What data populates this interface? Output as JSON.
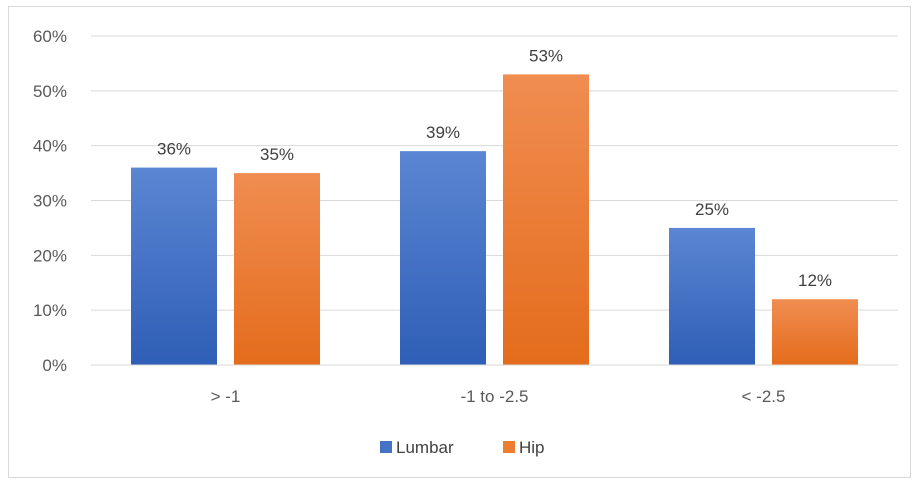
{
  "chart_data": {
    "type": "bar",
    "categories": [
      "> -1",
      "-1 to -2.5",
      "< -2.5"
    ],
    "series": [
      {
        "name": "Lumbar",
        "values": [
          36,
          39,
          25
        ],
        "labels": [
          "36%",
          "39%",
          "25%"
        ],
        "color": "#4472c4"
      },
      {
        "name": "Hip",
        "values": [
          35,
          53,
          12
        ],
        "labels": [
          "35%",
          "53%",
          "12%"
        ],
        "color": "#ed7d31"
      }
    ],
    "ylim": [
      0,
      60
    ],
    "yticks": [
      "0%",
      "10%",
      "20%",
      "30%",
      "40%",
      "50%",
      "60%"
    ],
    "grid": true,
    "legend_position": "bottom"
  }
}
